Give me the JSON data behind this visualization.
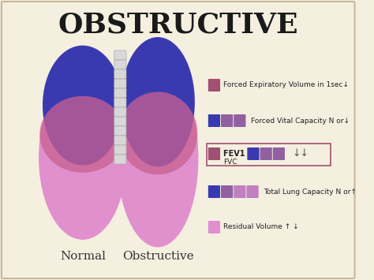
{
  "title": "OBSTRUCTIVE",
  "title_fontsize": 26,
  "title_font": "serif",
  "background_color": "#f5efe0",
  "border_color": "#c8b89a",
  "label_normal": "Normal",
  "label_obstructive": "Obstructive",
  "legend_items": [
    {
      "label": "Forced Expiratory Volume in 1sec↓",
      "colors": [
        "#a05070"
      ],
      "arrow": "↓"
    },
    {
      "label": "Forced Vital Capacity N or↓",
      "colors": [
        "#3a3ab0",
        "#9060a0",
        "#9060a0"
      ],
      "arrow": "↓"
    },
    {
      "label": "FEV1 / FVC",
      "colors_left": [
        "#a05070"
      ],
      "colors_right": [
        "#3a3ab0",
        "#9060a0",
        "#9060a0"
      ],
      "arrow": "↓↓",
      "boxed": true,
      "sublabel": "FVC"
    },
    {
      "label": "Total Lung Capacity N or↑",
      "colors": [
        "#3a3ab0",
        "#9060a0",
        "#c080c0",
        "#c080c0"
      ],
      "arrow": "↑"
    },
    {
      "label": "Residual Volume ↑ ↓",
      "colors": [
        "#e090d0"
      ],
      "arrow": ""
    }
  ],
  "lung_colors": {
    "normal_top": "#3a3ab0",
    "normal_mid": "#c86090",
    "normal_bottom": "#e090cc",
    "obstructive_top": "#3a3ab0",
    "obstructive_mid": "#c86090",
    "obstructive_bottom": "#e090cc"
  }
}
